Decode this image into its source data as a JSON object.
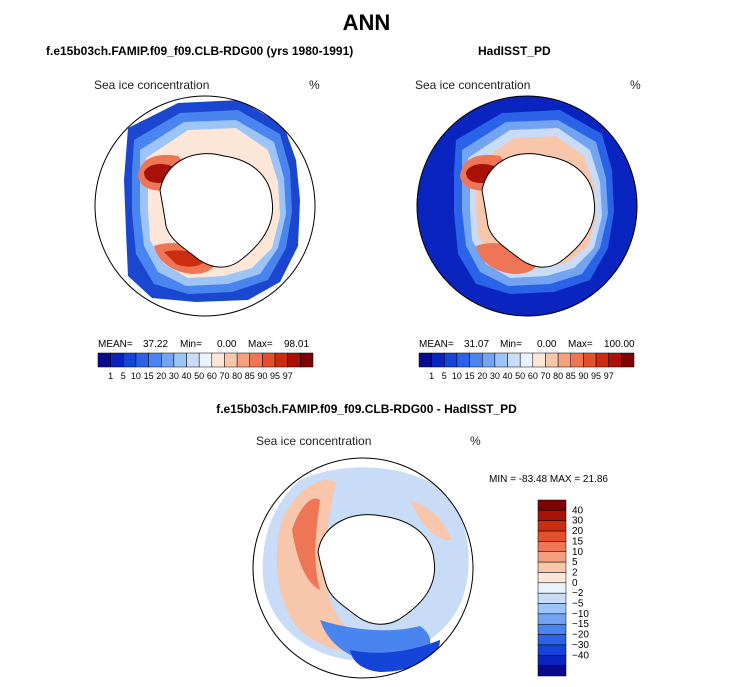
{
  "page_title": "ANN",
  "diff_title": "f.e15b03ch.FAMIP.f09_f09.CLB-RDG00 - HadISST_PD",
  "colors": {
    "abs_scale": [
      "#0a0a8c",
      "#0a24c0",
      "#1444d8",
      "#2a62e8",
      "#4a84ee",
      "#72a4f2",
      "#9cc4f6",
      "#c8dcf8",
      "#eaf2fc",
      "#fce6d8",
      "#f8c6aa",
      "#f4a07e",
      "#ee7656",
      "#e4502e",
      "#cc2c10",
      "#a81206",
      "#7c0204"
    ],
    "diff_scale": [
      "#0a0a8c",
      "#0a24c0",
      "#1444d8",
      "#2a62e8",
      "#4a84ee",
      "#72a4f2",
      "#9cc4f6",
      "#c8dcf8",
      "#eaf2fc",
      "#fce6d8",
      "#f8c6aa",
      "#f4a07e",
      "#ee7656",
      "#e4502e",
      "#cc2c10",
      "#a81206",
      "#7c0204"
    ]
  },
  "chart_data": [
    {
      "type": "heatmap",
      "title": "f.e15b03ch.FAMIP.f09_f09.CLB-RDG00 (yrs 1980-1991)",
      "field": "Sea ice concentration",
      "units": "%",
      "mean_label": "MEAN=",
      "mean": "37.22",
      "min_label": "Min=",
      "min": "0.00",
      "max_label": "Max=",
      "max": "98.01",
      "levels": [
        "1",
        "5",
        "10",
        "15",
        "20",
        "30",
        "40",
        "50",
        "60",
        "70",
        "80",
        "85",
        "90",
        "95",
        "97"
      ]
    },
    {
      "type": "heatmap",
      "title": "HadISST_PD",
      "field": "Sea ice concentration",
      "units": "%",
      "mean_label": "MEAN=",
      "mean": "31.07",
      "min_label": "Min=",
      "min": "0.00",
      "max_label": "Max=",
      "max": "100.00",
      "levels": [
        "1",
        "5",
        "10",
        "15",
        "20",
        "30",
        "40",
        "50",
        "60",
        "70",
        "80",
        "85",
        "90",
        "95",
        "97"
      ]
    },
    {
      "type": "heatmap",
      "title": "f.e15b03ch.FAMIP.f09_f09.CLB-RDG00 - HadISST_PD",
      "field": "Sea ice concentration",
      "units": "%",
      "minmax_text": "MIN = -83.48 MAX =  21.86",
      "levels": [
        "40",
        "30",
        "20",
        "15",
        "10",
        "5",
        "2",
        "0",
        "−2",
        "−5",
        "−10",
        "−15",
        "−20",
        "−30",
        "−40"
      ]
    }
  ]
}
